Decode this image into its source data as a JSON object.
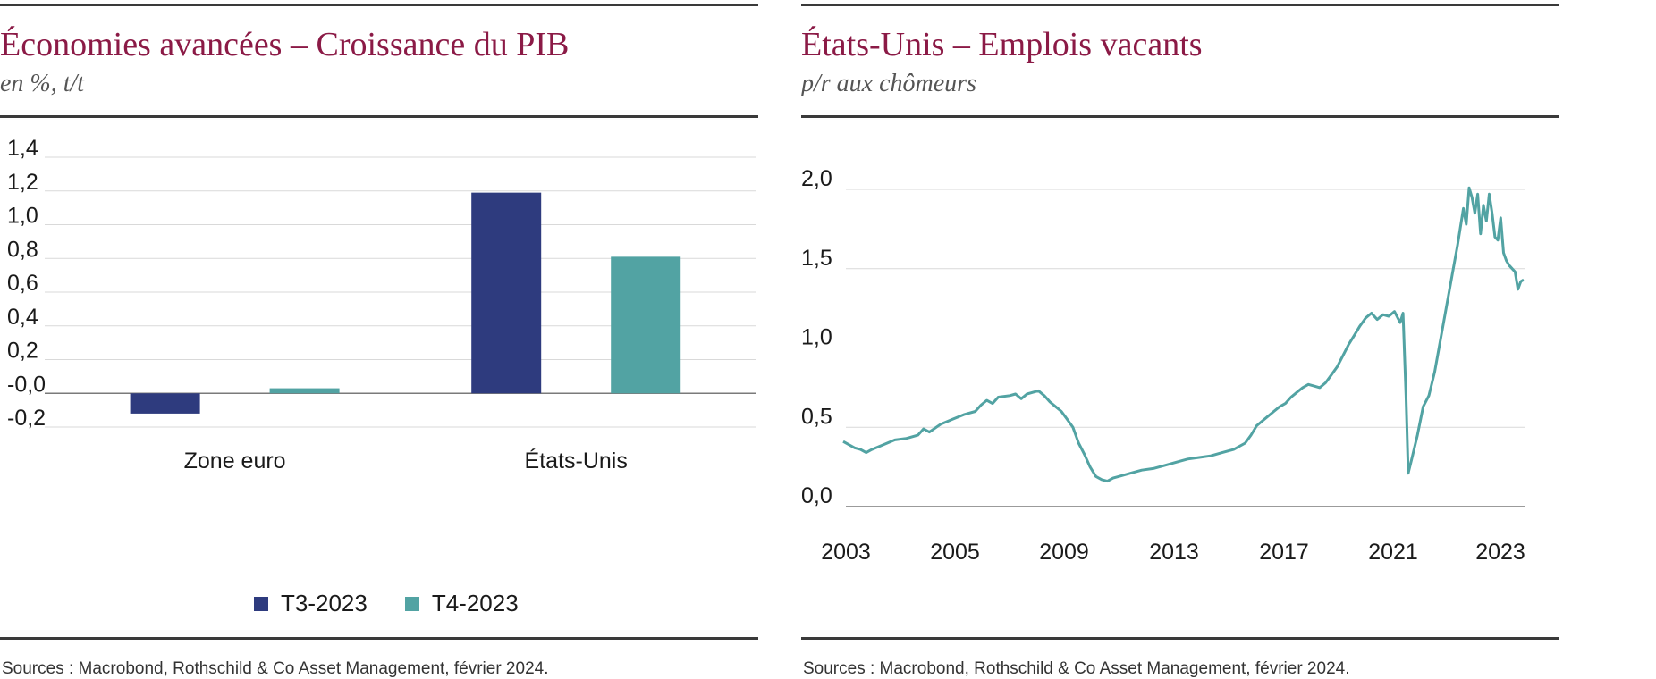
{
  "colors": {
    "title": "#8b1a46",
    "t3": "#2e3b7e",
    "t4": "#52a3a3",
    "line": "#52a3a3"
  },
  "left": {
    "title": "Économies avancées – Croissance du PIB",
    "subtitle": "en %, t/t",
    "source": "Sources : Macrobond, Rothschild & Co Asset Management, février 2024.",
    "legend": [
      "T3-2023",
      "T4-2023"
    ]
  },
  "right": {
    "title": "États-Unis – Emplois vacants",
    "subtitle": "p/r aux chômeurs",
    "source": "Sources : Macrobond, Rothschild & Co Asset Management, février 2024."
  },
  "chart_data": [
    {
      "type": "bar",
      "title": "Économies avancées – Croissance du PIB",
      "subtitle": "en %, t/t",
      "categories": [
        "Zone euro",
        "États-Unis"
      ],
      "series": [
        {
          "name": "T3-2023",
          "values": [
            -0.12,
            1.19
          ]
        },
        {
          "name": "T4-2023",
          "values": [
            0.03,
            0.81
          ]
        }
      ],
      "ylim": [
        -0.2,
        1.4
      ],
      "yticks": [
        "-0,2",
        "-0,0",
        "0,2",
        "0,4",
        "0,6",
        "0,8",
        "1,0",
        "1,2",
        "1,4"
      ],
      "grid": true,
      "legend": "bottom"
    },
    {
      "type": "line",
      "title": "États-Unis – Emplois vacants",
      "subtitle": "p/r aux chômeurs",
      "xticks": [
        "2003",
        "2005",
        "2009",
        "2013",
        "2017",
        "2021",
        "2023"
      ],
      "yticks": [
        "0,0",
        "0,5",
        "1,0",
        "1,5",
        "2,0"
      ],
      "ylim": [
        0,
        2.0
      ],
      "grid": true,
      "series": [
        {
          "points": [
            [
              0,
              0.41
            ],
            [
              2,
              0.37
            ],
            [
              3,
              0.36
            ],
            [
              4,
              0.34
            ],
            [
              5,
              0.36
            ],
            [
              7,
              0.39
            ],
            [
              9,
              0.42
            ],
            [
              11,
              0.43
            ],
            [
              13,
              0.45
            ],
            [
              14,
              0.49
            ],
            [
              15,
              0.47
            ],
            [
              17,
              0.52
            ],
            [
              19,
              0.55
            ],
            [
              21,
              0.58
            ],
            [
              23,
              0.6
            ],
            [
              24,
              0.64
            ],
            [
              25,
              0.67
            ],
            [
              26,
              0.65
            ],
            [
              27,
              0.69
            ],
            [
              29,
              0.7
            ],
            [
              30,
              0.71
            ],
            [
              31,
              0.68
            ],
            [
              32,
              0.71
            ],
            [
              33,
              0.72
            ],
            [
              34,
              0.73
            ],
            [
              35,
              0.7
            ],
            [
              36,
              0.66
            ],
            [
              37,
              0.63
            ],
            [
              38,
              0.6
            ],
            [
              39,
              0.55
            ],
            [
              40,
              0.5
            ],
            [
              41,
              0.4
            ],
            [
              42,
              0.33
            ],
            [
              43,
              0.25
            ],
            [
              44,
              0.19
            ],
            [
              45,
              0.17
            ],
            [
              46,
              0.16
            ],
            [
              47,
              0.18
            ],
            [
              48,
              0.19
            ],
            [
              50,
              0.21
            ],
            [
              52,
              0.23
            ],
            [
              54,
              0.24
            ],
            [
              56,
              0.26
            ],
            [
              58,
              0.28
            ],
            [
              60,
              0.3
            ],
            [
              62,
              0.31
            ],
            [
              64,
              0.32
            ],
            [
              66,
              0.34
            ],
            [
              68,
              0.36
            ],
            [
              70,
              0.4
            ],
            [
              71,
              0.45
            ],
            [
              72,
              0.51
            ],
            [
              73,
              0.54
            ],
            [
              74,
              0.57
            ],
            [
              75,
              0.6
            ],
            [
              76,
              0.63
            ],
            [
              77,
              0.65
            ],
            [
              78,
              0.69
            ],
            [
              79,
              0.72
            ],
            [
              80,
              0.75
            ],
            [
              81,
              0.77
            ],
            [
              82,
              0.76
            ],
            [
              83,
              0.75
            ],
            [
              84,
              0.78
            ],
            [
              85,
              0.83
            ],
            [
              86,
              0.88
            ],
            [
              87,
              0.95
            ],
            [
              88,
              1.02
            ],
            [
              89,
              1.08
            ],
            [
              90,
              1.14
            ],
            [
              91,
              1.19
            ],
            [
              92,
              1.22
            ],
            [
              93,
              1.18
            ],
            [
              94,
              1.21
            ],
            [
              95,
              1.2
            ],
            [
              96,
              1.23
            ],
            [
              97,
              1.16
            ],
            [
              97.5,
              1.22
            ],
            [
              98,
              0.7
            ],
            [
              98.4,
              0.21
            ],
            [
              99,
              0.3
            ],
            [
              100,
              0.45
            ],
            [
              101,
              0.63
            ],
            [
              102,
              0.7
            ],
            [
              103,
              0.85
            ],
            [
              104,
              1.05
            ],
            [
              105,
              1.25
            ],
            [
              106,
              1.45
            ],
            [
              107,
              1.65
            ],
            [
              108,
              1.88
            ],
            [
              108.5,
              1.78
            ],
            [
              109,
              2.01
            ],
            [
              109.5,
              1.95
            ],
            [
              110,
              1.85
            ],
            [
              110.5,
              1.97
            ],
            [
              111,
              1.72
            ],
            [
              111.5,
              1.9
            ],
            [
              112,
              1.8
            ],
            [
              112.5,
              1.97
            ],
            [
              113,
              1.85
            ],
            [
              113.5,
              1.7
            ],
            [
              114,
              1.68
            ],
            [
              114.5,
              1.82
            ],
            [
              115,
              1.6
            ],
            [
              115.5,
              1.55
            ],
            [
              116,
              1.52
            ],
            [
              116.5,
              1.5
            ],
            [
              117,
              1.48
            ],
            [
              117.5,
              1.37
            ],
            [
              118,
              1.42
            ],
            [
              118.5,
              1.43
            ]
          ]
        }
      ]
    }
  ]
}
